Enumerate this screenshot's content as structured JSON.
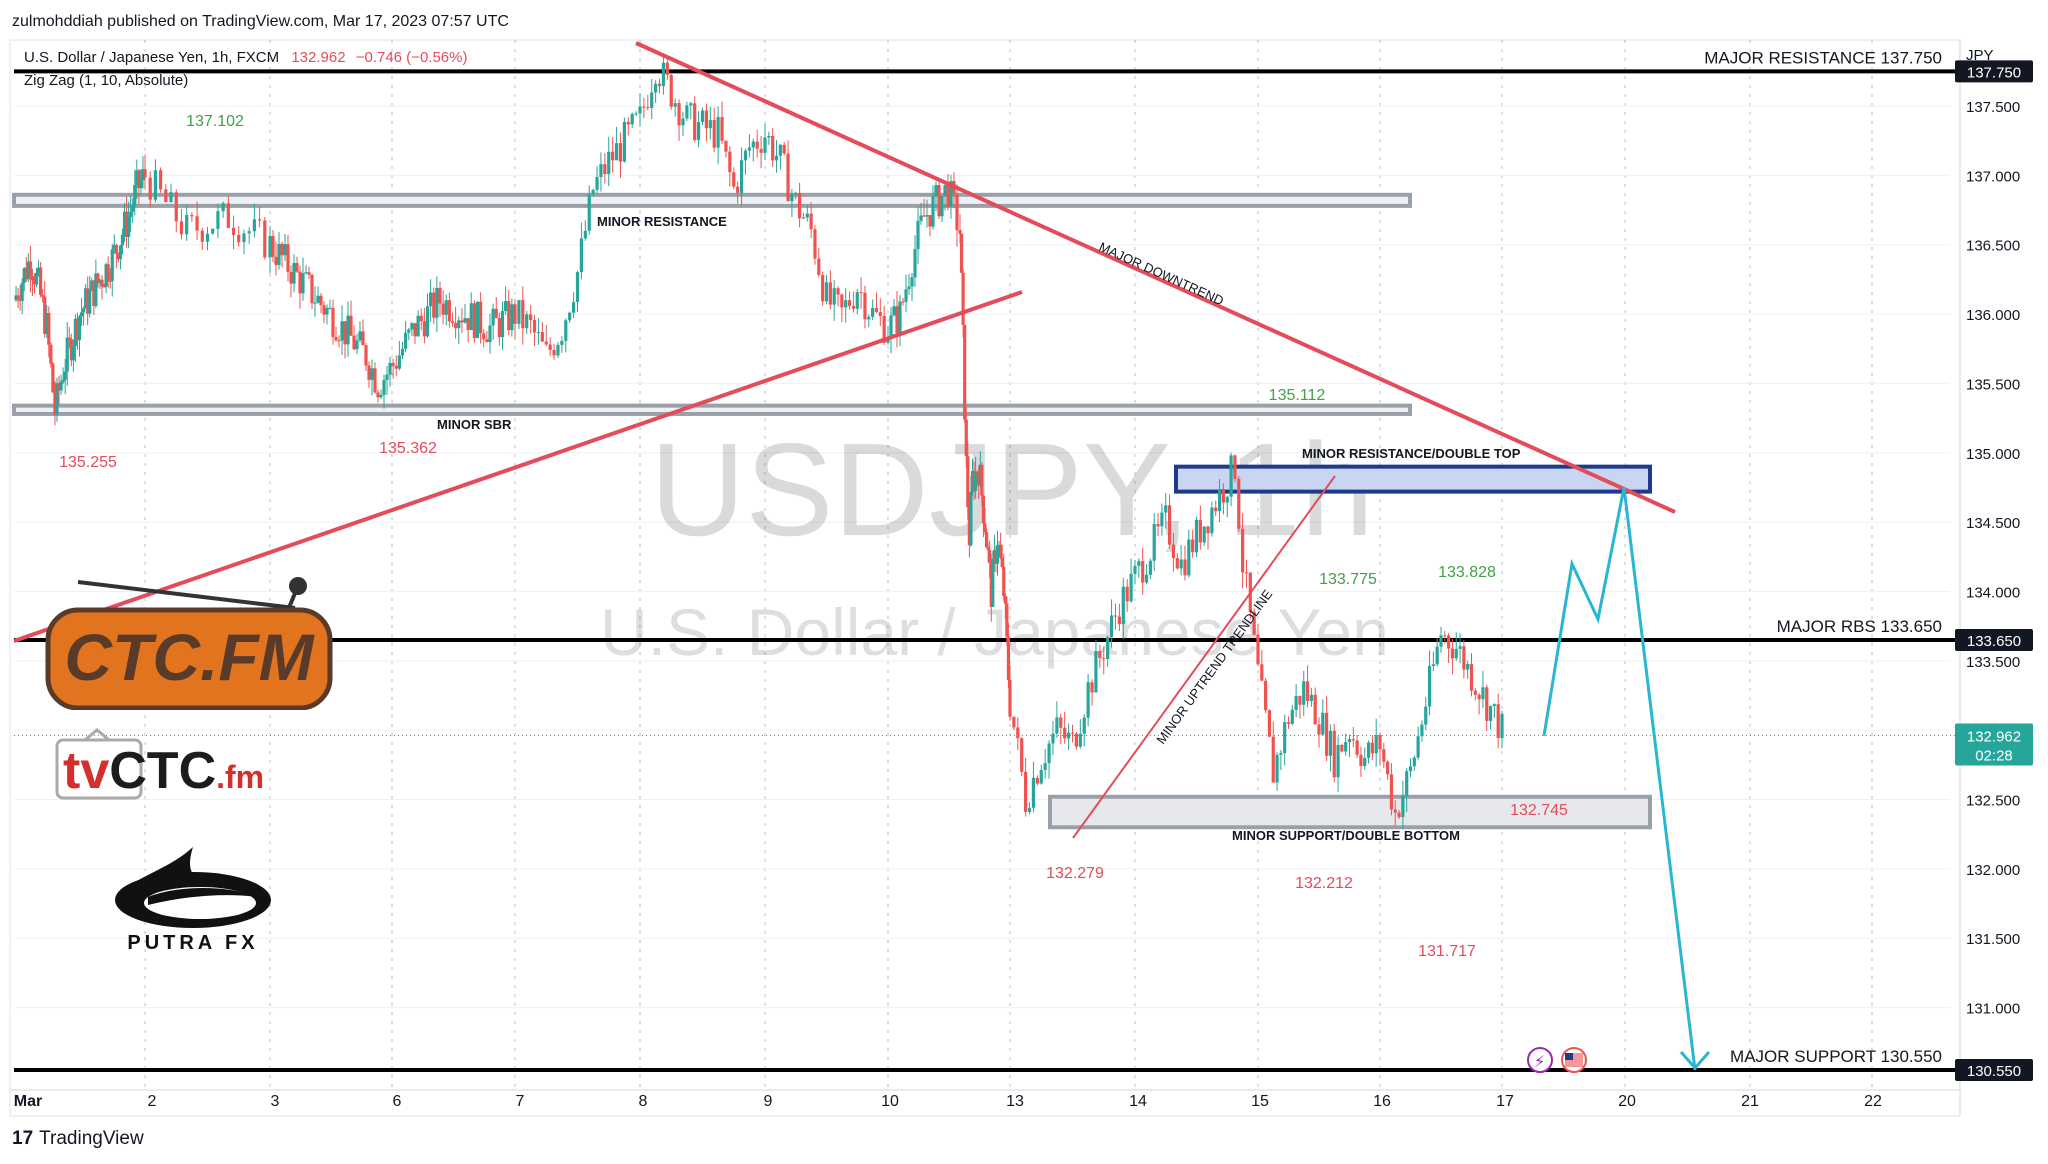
{
  "header": {
    "published": "zulmohddiah published on TradingView.com, Mar 17, 2023 07:57 UTC",
    "symbol": "U.S. Dollar / Japanese Yen, 1h, FXCM",
    "price": "132.962",
    "change": "−0.746 (−0.56%)",
    "indicator": "Zig Zag (1, 10, Absolute)"
  },
  "watermark": {
    "symbol": "USDJPY, 1h",
    "name": "U.S. Dollar / Japanese Yen"
  },
  "footer": {
    "brand": "TradingView"
  },
  "logos": {
    "ctc": "CTC.FM",
    "tvctc_a": "tv",
    "tvctc_b": "CTC",
    "tvctc_c": ".fm",
    "putra": "PUTRA FX"
  },
  "colors": {
    "up": "#26a69a",
    "down": "#ef5350",
    "trend": "#e34c59",
    "projection": "#29b6d3",
    "box_blue": "#1e3a8a"
  },
  "chart_data": {
    "type": "candlestick",
    "currency": "JPY",
    "ylim": [
      130.3,
      138.3
    ],
    "y_ticks": [
      "130.550",
      "131.000",
      "131.500",
      "132.000",
      "132.500",
      "133.000",
      "133.500",
      "133.650",
      "134.000",
      "134.500",
      "135.000",
      "135.500",
      "136.000",
      "136.500",
      "137.000",
      "137.500",
      "137.750"
    ],
    "x_ticks": [
      "Mar",
      "2",
      "3",
      "6",
      "7",
      "8",
      "9",
      "10",
      "13",
      "14",
      "15",
      "16",
      "17",
      "20",
      "21",
      "22"
    ],
    "current_price": {
      "value": 132.962,
      "label": "132.962",
      "countdown": "02:28"
    },
    "close_path": [
      [
        0,
        136.1
      ],
      [
        2,
        136.4
      ],
      [
        3,
        136.2
      ],
      [
        4,
        135.9
      ],
      [
        5,
        135.3
      ],
      [
        6,
        135.6
      ],
      [
        8,
        136.0
      ],
      [
        10,
        136.2
      ],
      [
        12,
        136.4
      ],
      [
        14,
        136.7
      ],
      [
        15,
        136.9
      ],
      [
        16,
        137.0
      ],
      [
        17,
        136.8
      ],
      [
        18,
        136.6
      ],
      [
        20,
        136.7
      ],
      [
        22,
        136.5
      ],
      [
        24,
        136.3
      ],
      [
        26,
        136.1
      ],
      [
        28,
        135.9
      ],
      [
        30,
        135.7
      ],
      [
        31,
        135.5
      ],
      [
        32,
        135.6
      ],
      [
        34,
        135.9
      ],
      [
        36,
        136.1
      ],
      [
        38,
        136.0
      ],
      [
        40,
        135.9
      ],
      [
        42,
        136.0
      ],
      [
        43,
        135.9
      ],
      [
        44,
        135.7
      ],
      [
        45,
        135.9
      ],
      [
        46,
        136.3
      ],
      [
        47,
        136.9
      ],
      [
        48,
        137.1
      ],
      [
        50,
        137.4
      ],
      [
        51,
        137.8
      ],
      [
        52,
        137.6
      ],
      [
        53,
        137.4
      ],
      [
        55,
        137.3
      ],
      [
        56,
        136.9
      ],
      [
        57,
        137.2
      ],
      [
        58,
        137.3
      ],
      [
        59,
        137.1
      ],
      [
        60,
        136.8
      ],
      [
        61,
        136.6
      ],
      [
        62,
        136.1
      ],
      [
        63,
        136.0
      ],
      [
        64,
        136.2
      ],
      [
        65,
        136.0
      ],
      [
        66,
        135.9
      ],
      [
        67,
        136.0
      ],
      [
        68,
        136.4
      ],
      [
        69,
        136.7
      ],
      [
        70,
        136.8
      ],
      [
        71,
        136.9
      ],
      [
        72,
        136.6
      ],
      [
        72.5,
        135.8
      ],
      [
        73,
        134.9
      ],
      [
        73.5,
        134.4
      ],
      [
        74,
        134.8
      ],
      [
        75,
        134.9
      ],
      [
        76,
        134.5
      ],
      [
        77,
        134.0
      ],
      [
        78,
        134.4
      ],
      [
        79,
        134.0
      ],
      [
        80,
        133.2
      ],
      [
        81,
        132.5
      ],
      [
        82,
        132.8
      ],
      [
        83,
        133.0
      ],
      [
        84,
        132.9
      ],
      [
        85,
        133.3
      ],
      [
        86,
        133.6
      ],
      [
        87,
        133.9
      ],
      [
        88,
        134.1
      ],
      [
        89,
        134.3
      ],
      [
        90,
        134.5
      ],
      [
        91,
        134.2
      ],
      [
        92,
        134.4
      ],
      [
        93,
        134.6
      ],
      [
        94,
        134.8
      ],
      [
        94.5,
        134.9
      ],
      [
        95,
        134.2
      ],
      [
        96,
        133.4
      ],
      [
        97,
        132.7
      ],
      [
        98,
        133.1
      ],
      [
        99,
        133.3
      ],
      [
        100,
        133.1
      ],
      [
        101,
        132.8
      ],
      [
        102,
        133.0
      ],
      [
        103,
        132.8
      ],
      [
        104,
        132.9
      ],
      [
        105,
        132.4
      ],
      [
        106,
        132.7
      ],
      [
        107,
        133.2
      ],
      [
        108,
        133.7
      ],
      [
        109,
        133.6
      ],
      [
        110,
        133.4
      ],
      [
        111,
        133.2
      ],
      [
        112,
        133.0
      ]
    ],
    "levels": [
      {
        "label": "MAJOR RESISTANCE 137.750",
        "value": 137.75,
        "tag": "137.750"
      },
      {
        "label": "MAJOR RBS 133.650",
        "value": 133.65,
        "tag": "133.650"
      },
      {
        "label": "MAJOR SUPPORT 130.550",
        "value": 130.55,
        "tag": "130.550"
      }
    ],
    "zones": [
      {
        "label": "MINOR RESISTANCE",
        "from": 136.78,
        "to": 136.86
      },
      {
        "label": "MINOR SBR",
        "from": 135.28,
        "to": 135.34
      },
      {
        "label": "MINOR RESISTANCE/DOUBLE TOP",
        "from": 134.72,
        "to": 134.9
      },
      {
        "label": "MINOR SUPPORT/DOUBLE BOTTOM",
        "from": 132.3,
        "to": 132.52
      }
    ],
    "trendlines": [
      {
        "label": "MAJOR DOWNTREND"
      },
      {
        "label": "MINOR UPTREND TRENDLINE"
      }
    ],
    "zigzag_labels": [
      {
        "text": "137.102",
        "dir": "high"
      },
      {
        "text": "135.255",
        "dir": "low"
      },
      {
        "text": "135.362",
        "dir": "low"
      },
      {
        "text": "135.112",
        "dir": "high"
      },
      {
        "text": "132.279",
        "dir": "low"
      },
      {
        "text": "133.775",
        "dir": "high"
      },
      {
        "text": "133.828",
        "dir": "high"
      },
      {
        "text": "132.212",
        "dir": "low"
      },
      {
        "text": "132.745",
        "dir": "low"
      },
      {
        "text": "131.717",
        "dir": "low"
      }
    ],
    "projection": [
      [
        0,
        132.96
      ],
      [
        1,
        134.2
      ],
      [
        2,
        133.8
      ],
      [
        3,
        134.75
      ],
      [
        4,
        130.55
      ]
    ]
  }
}
